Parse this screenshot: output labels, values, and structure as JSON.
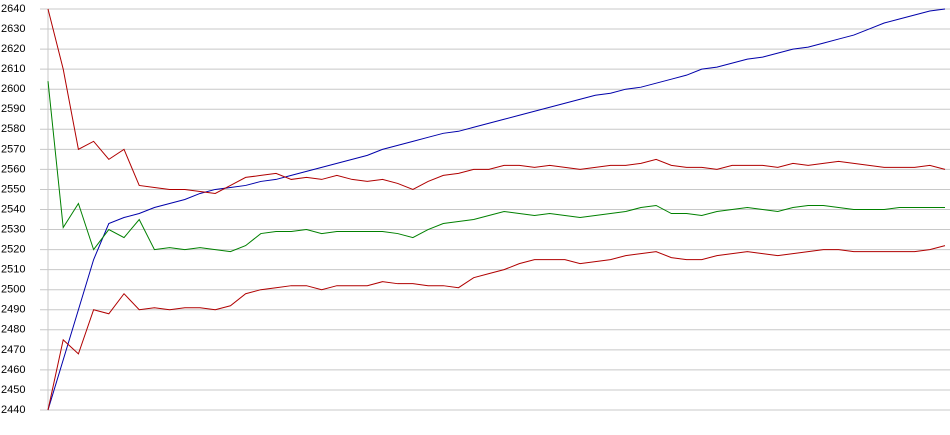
{
  "chart_data": {
    "type": "line",
    "categories": [
      null,
      null,
      null,
      null,
      null,
      null,
      null,
      null,
      null,
      null,
      null,
      null,
      null,
      null,
      null,
      null,
      null,
      null,
      null,
      null,
      null,
      null,
      null,
      null,
      null,
      null,
      null,
      null,
      null,
      null,
      null,
      null,
      null,
      null,
      null,
      null,
      null,
      null,
      null,
      null,
      null,
      null,
      null,
      null,
      null,
      null,
      null,
      null,
      null,
      null,
      null,
      null,
      null,
      null,
      null,
      null,
      null,
      null,
      null,
      null
    ],
    "series": [
      {
        "color": "#0000aa",
        "values": [
          2440,
          2465,
          2490,
          2515,
          2533,
          2536,
          2538,
          2541,
          2543,
          2545,
          2548,
          2550,
          2551,
          2552,
          2554,
          2555,
          2557,
          2559,
          2561,
          2563,
          2565,
          2567,
          2570,
          2572,
          2574,
          2576,
          2578,
          2579,
          2581,
          2583,
          2585,
          2587,
          2589,
          2591,
          2593,
          2595,
          2597,
          2598,
          2600,
          2601,
          2603,
          2605,
          2607,
          2610,
          2611,
          2613,
          2615,
          2616,
          2618,
          2620,
          2621,
          2623,
          2625,
          2627,
          2630,
          2633,
          2635,
          2637,
          2639,
          2640
        ]
      },
      {
        "color": "#b00000",
        "values": [
          2640,
          2610,
          2570,
          2574,
          2565,
          2570,
          2552,
          2551,
          2550,
          2550,
          2549,
          2548,
          2552,
          2556,
          2557,
          2558,
          2555,
          2556,
          2555,
          2557,
          2555,
          2554,
          2555,
          2553,
          2550,
          2554,
          2557,
          2558,
          2560,
          2560,
          2562,
          2562,
          2561,
          2562,
          2561,
          2560,
          2561,
          2562,
          2562,
          2563,
          2565,
          2562,
          2561,
          2561,
          2560,
          2562,
          2562,
          2562,
          2561,
          2563,
          2562,
          2563,
          2564,
          2563,
          2562,
          2561,
          2561,
          2561,
          2562,
          2560
        ]
      },
      {
        "color": "#008000",
        "values": [
          2604,
          2531,
          2543,
          2520,
          2530,
          2526,
          2535,
          2520,
          2521,
          2520,
          2521,
          2520,
          2519,
          2522,
          2528,
          2529,
          2529,
          2530,
          2528,
          2529,
          2529,
          2529,
          2529,
          2528,
          2526,
          2530,
          2533,
          2534,
          2535,
          2537,
          2539,
          2538,
          2537,
          2538,
          2537,
          2536,
          2537,
          2538,
          2539,
          2541,
          2542,
          2538,
          2538,
          2537,
          2539,
          2540,
          2541,
          2540,
          2539,
          2541,
          2542,
          2542,
          2541,
          2540,
          2540,
          2540,
          2541,
          2541,
          2541,
          2541
        ]
      },
      {
        "color": "#b00000",
        "values": [
          2440,
          2475,
          2468,
          2490,
          2488,
          2498,
          2490,
          2491,
          2490,
          2491,
          2491,
          2490,
          2492,
          2498,
          2500,
          2501,
          2502,
          2502,
          2500,
          2502,
          2502,
          2502,
          2504,
          2503,
          2503,
          2502,
          2502,
          2501,
          2506,
          2508,
          2510,
          2513,
          2515,
          2515,
          2515,
          2513,
          2514,
          2515,
          2517,
          2518,
          2519,
          2516,
          2515,
          2515,
          2517,
          2518,
          2519,
          2518,
          2517,
          2518,
          2519,
          2520,
          2520,
          2519,
          2519,
          2519,
          2519,
          2519,
          2520,
          2522
        ]
      }
    ],
    "ylim": [
      2440,
      2640
    ],
    "yticks": [
      2440,
      2450,
      2460,
      2470,
      2480,
      2490,
      2500,
      2510,
      2520,
      2530,
      2540,
      2550,
      2560,
      2570,
      2580,
      2590,
      2600,
      2610,
      2620,
      2630,
      2640
    ],
    "grid": true
  }
}
